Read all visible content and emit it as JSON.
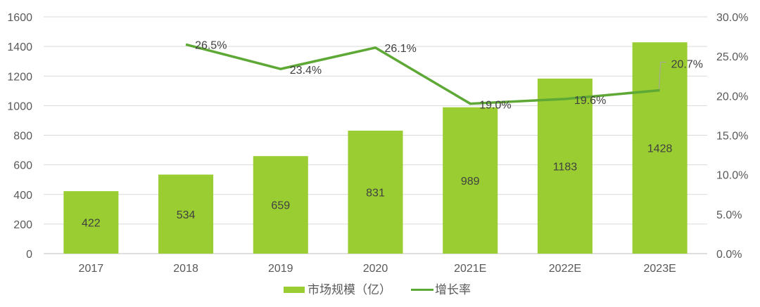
{
  "chart_data": {
    "type": "bar+line",
    "categories": [
      "2017",
      "2018",
      "2019",
      "2020",
      "2021E",
      "2022E",
      "2023E"
    ],
    "series": [
      {
        "name": "市场规模（亿）",
        "type": "bar",
        "axis": "left",
        "values": [
          422,
          534,
          659,
          831,
          989,
          1183,
          1428
        ],
        "color": "#9ACD32"
      },
      {
        "name": "增长率",
        "type": "line",
        "axis": "right",
        "values": [
          null,
          26.5,
          23.4,
          26.1,
          19.0,
          19.6,
          20.7
        ],
        "labels": [
          "",
          "26.5%",
          "23.4%",
          "26.1%",
          "19.0%",
          "19.6%",
          "20.7%"
        ],
        "color": "#5EA836"
      }
    ],
    "y_left": {
      "range": [
        0,
        1600
      ],
      "ticks": [
        "0",
        "200",
        "400",
        "600",
        "800",
        "1000",
        "1200",
        "1400",
        "1600"
      ]
    },
    "y_right": {
      "range": [
        0,
        30
      ],
      "ticks": [
        "0.0%",
        "5.0%",
        "10.0%",
        "15.0%",
        "20.0%",
        "25.0%",
        "30.0%"
      ]
    },
    "grid": true,
    "legend": "bottom"
  }
}
